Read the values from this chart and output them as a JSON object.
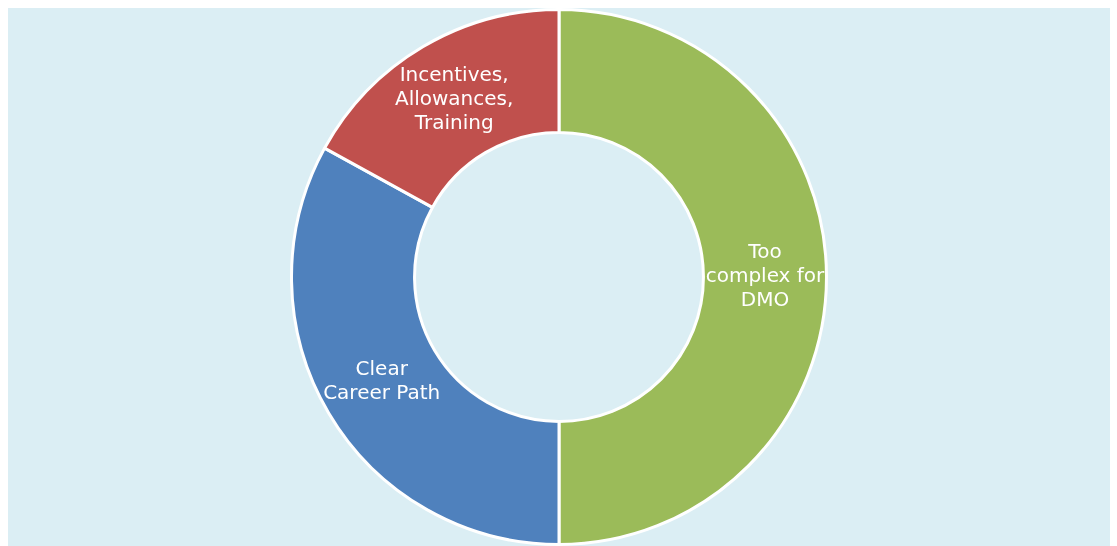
{
  "chart_data": {
    "type": "donut",
    "categories": [
      "Too complex for DMO",
      "Clear Career Path",
      "Incentives, Allowances, Training"
    ],
    "values": [
      50,
      33,
      17
    ],
    "colors": [
      "#9bbb59",
      "#4f81bd",
      "#c0504d"
    ],
    "legend": false
  }
}
